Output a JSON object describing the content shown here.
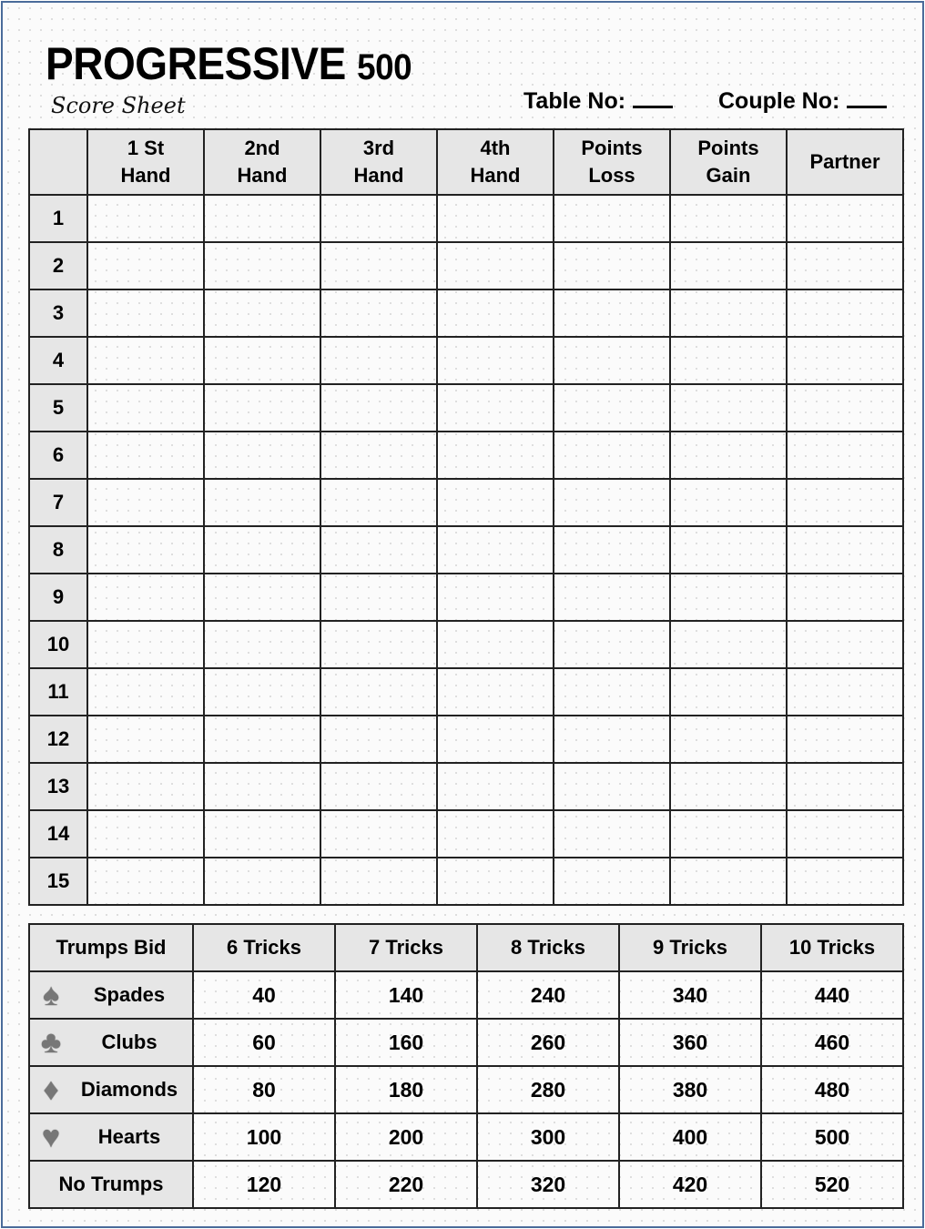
{
  "header": {
    "title": "PROGRESSIVE",
    "title_number": "500",
    "subtitle": "Score Sheet",
    "table_no_label": "Table No:",
    "couple_no_label": "Couple No:"
  },
  "score_table": {
    "columns": [
      "",
      "1 St\nHand",
      "2nd\nHand",
      "3rd\nHand",
      "4th\nHand",
      "Points\nLoss",
      "Points\nGain",
      "Partner"
    ],
    "rows": [
      "1",
      "2",
      "3",
      "4",
      "5",
      "6",
      "7",
      "8",
      "9",
      "10",
      "11",
      "12",
      "13",
      "14",
      "15"
    ]
  },
  "bid_table": {
    "columns": [
      "Trumps Bid",
      "6 Tricks",
      "7 Tricks",
      "8 Tricks",
      "9 Tricks",
      "10 Tricks"
    ],
    "rows": [
      {
        "label": "Spades",
        "icon": "spade-icon",
        "glyph": "♠",
        "values": [
          "40",
          "140",
          "240",
          "340",
          "440"
        ]
      },
      {
        "label": "Clubs",
        "icon": "club-icon",
        "glyph": "♣",
        "values": [
          "60",
          "160",
          "260",
          "360",
          "460"
        ]
      },
      {
        "label": "Diamonds",
        "icon": "diamond-icon",
        "glyph": "♦",
        "values": [
          "80",
          "180",
          "280",
          "380",
          "480"
        ]
      },
      {
        "label": "Hearts",
        "icon": "heart-icon",
        "glyph": "♥",
        "values": [
          "100",
          "200",
          "300",
          "400",
          "500"
        ]
      },
      {
        "label": "No Trumps",
        "values": [
          "120",
          "220",
          "320",
          "420",
          "520"
        ]
      }
    ]
  }
}
